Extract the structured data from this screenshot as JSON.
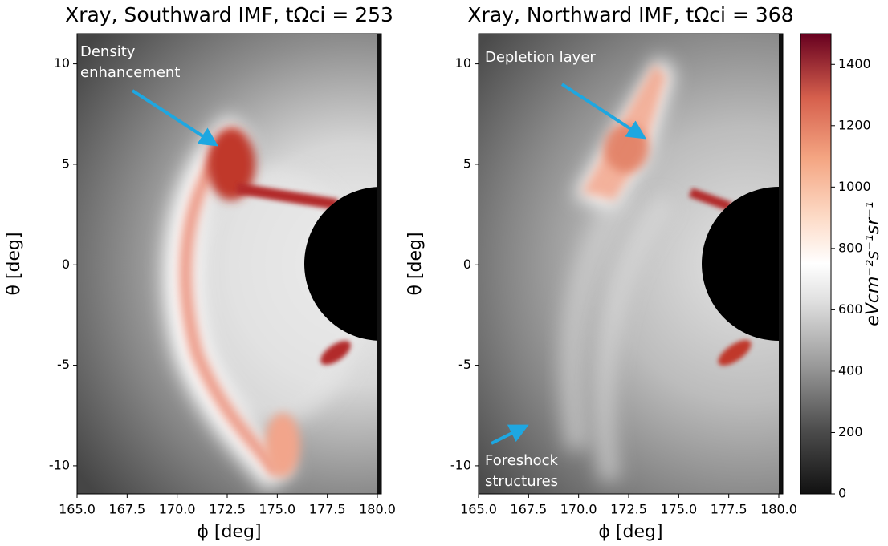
{
  "chart_data": [
    {
      "type": "heatmap",
      "title": "Xray, Southward IMF, tΩci = 253",
      "xlabel": "ϕ [deg]",
      "ylabel": "θ [deg]",
      "xlim": [
        165,
        180.2
      ],
      "ylim": [
        -11.4,
        11.5
      ],
      "xticks": [
        {
          "value": 165,
          "label": "165.0"
        },
        {
          "value": 167.5,
          "label": "167.5"
        },
        {
          "value": 170,
          "label": "170.0"
        },
        {
          "value": 172.5,
          "label": "172.5"
        },
        {
          "value": 175,
          "label": "175.0"
        },
        {
          "value": 177.5,
          "label": "177.5"
        },
        {
          "value": 180,
          "label": "180.0"
        }
      ],
      "yticks": [
        -10,
        -5,
        0,
        5,
        10
      ],
      "annotations": [
        {
          "text": [
            "Density",
            "enhancement"
          ]
        }
      ]
    },
    {
      "type": "heatmap",
      "title": "Xray, Northward IMF, tΩci = 368",
      "xlabel": "ϕ [deg]",
      "ylabel": "θ [deg]",
      "xlim": [
        165,
        180.2
      ],
      "ylim": [
        -11.4,
        11.5
      ],
      "xticks": [
        {
          "value": 165,
          "label": "165.0"
        },
        {
          "value": 167.5,
          "label": "167.5"
        },
        {
          "value": 170,
          "label": "170.0"
        },
        {
          "value": 172.5,
          "label": "172.5"
        },
        {
          "value": 175,
          "label": "175.0"
        },
        {
          "value": 177.5,
          "label": "177.5"
        },
        {
          "value": 180,
          "label": "180.0"
        }
      ],
      "yticks": [
        -10,
        -5,
        0,
        5,
        10
      ],
      "annotations": [
        {
          "text": [
            "Depletion layer"
          ]
        },
        {
          "text": [
            "Foreshock",
            "structures"
          ]
        }
      ],
      "colorbar": {
        "label": "eVcm⁻²s⁻¹sr⁻¹",
        "lim": [
          0,
          1500
        ],
        "ticks": [
          0,
          200,
          400,
          600,
          800,
          1000,
          1200,
          1400
        ]
      }
    }
  ]
}
